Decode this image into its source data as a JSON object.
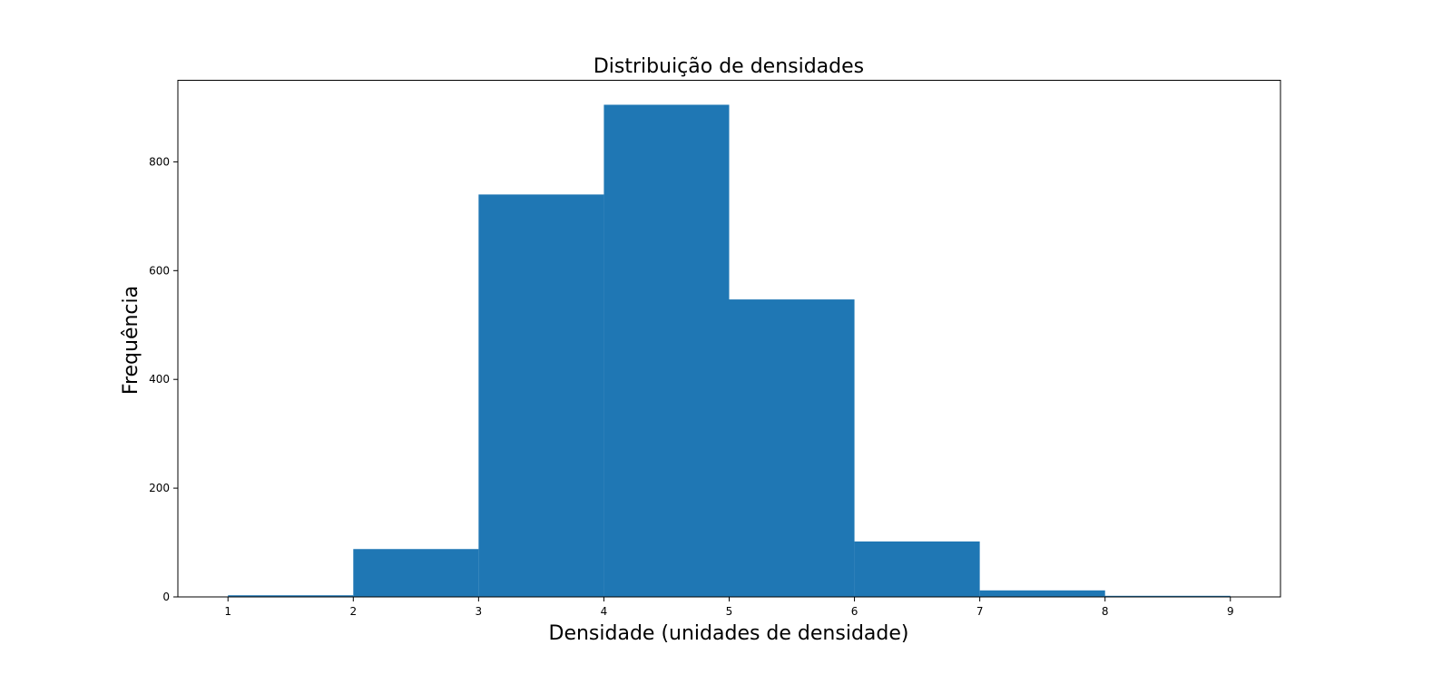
{
  "chart_data": {
    "type": "bar",
    "title": "Distribuição de densidades",
    "xlabel": "Densidade (unidades de densidade)",
    "ylabel": "Frequência",
    "bins": [
      {
        "x0": 1,
        "x1": 2,
        "count": 3
      },
      {
        "x0": 2,
        "x1": 3,
        "count": 88
      },
      {
        "x0": 3,
        "x1": 4,
        "count": 740
      },
      {
        "x0": 4,
        "x1": 5,
        "count": 905
      },
      {
        "x0": 5,
        "x1": 6,
        "count": 547
      },
      {
        "x0": 6,
        "x1": 7,
        "count": 102
      },
      {
        "x0": 7,
        "x1": 8,
        "count": 12
      },
      {
        "x0": 8,
        "x1": 9,
        "count": 2
      }
    ],
    "xticks": [
      "1",
      "2",
      "3",
      "4",
      "5",
      "6",
      "7",
      "8",
      "9"
    ],
    "yticks": [
      "0",
      "200",
      "400",
      "600",
      "800"
    ],
    "xlim": [
      0.6,
      9.4
    ],
    "ylim": [
      0,
      950
    ],
    "bar_color": "#1f77b4",
    "grid": false,
    "legend": "none"
  }
}
